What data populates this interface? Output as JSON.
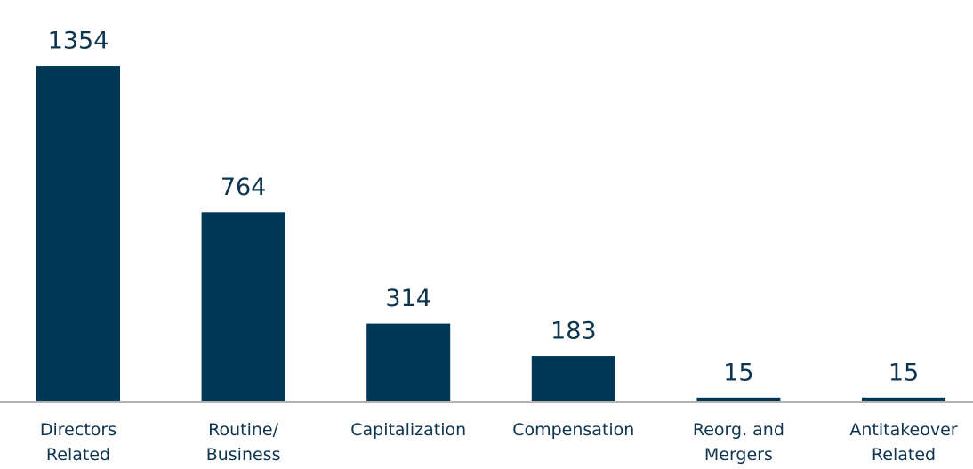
{
  "chart_data": {
    "type": "bar",
    "categories": [
      "Directors\nRelated",
      "Routine/\nBusiness",
      "Capitalization",
      "Compensation",
      "Reorg. and\nMergers",
      "Antitakeover\nRelated"
    ],
    "values": [
      1354,
      764,
      314,
      183,
      15,
      15
    ],
    "color": "#003755",
    "ylim": [
      0,
      1500
    ]
  }
}
